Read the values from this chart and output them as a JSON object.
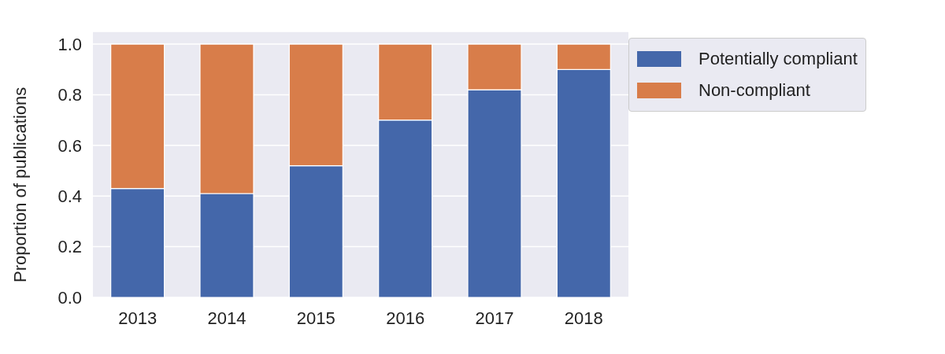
{
  "chart_data": {
    "type": "bar",
    "ylabel": "Proportion of publications",
    "categories": [
      "2013",
      "2014",
      "2015",
      "2016",
      "2017",
      "2018"
    ],
    "stacked": true,
    "series": [
      {
        "name": "Potentially compliant",
        "color": "#4467aa",
        "values": [
          0.43,
          0.41,
          0.52,
          0.7,
          0.82,
          0.9
        ]
      },
      {
        "name": "Non-compliant",
        "color": "#d87d4a",
        "values": [
          0.57,
          0.59,
          0.48,
          0.3,
          0.18,
          0.1
        ]
      }
    ],
    "ylim": [
      0,
      1.05
    ],
    "yticks": [
      {
        "value": 0,
        "label": "0.0"
      },
      {
        "value": 0.2,
        "label": "0.2"
      },
      {
        "value": 0.4,
        "label": "0.4"
      },
      {
        "value": 0.6,
        "label": "0.6"
      },
      {
        "value": 0.8,
        "label": "0.8"
      },
      {
        "value": 1,
        "label": "1.0"
      }
    ],
    "grid": "y",
    "legend": "top right"
  }
}
